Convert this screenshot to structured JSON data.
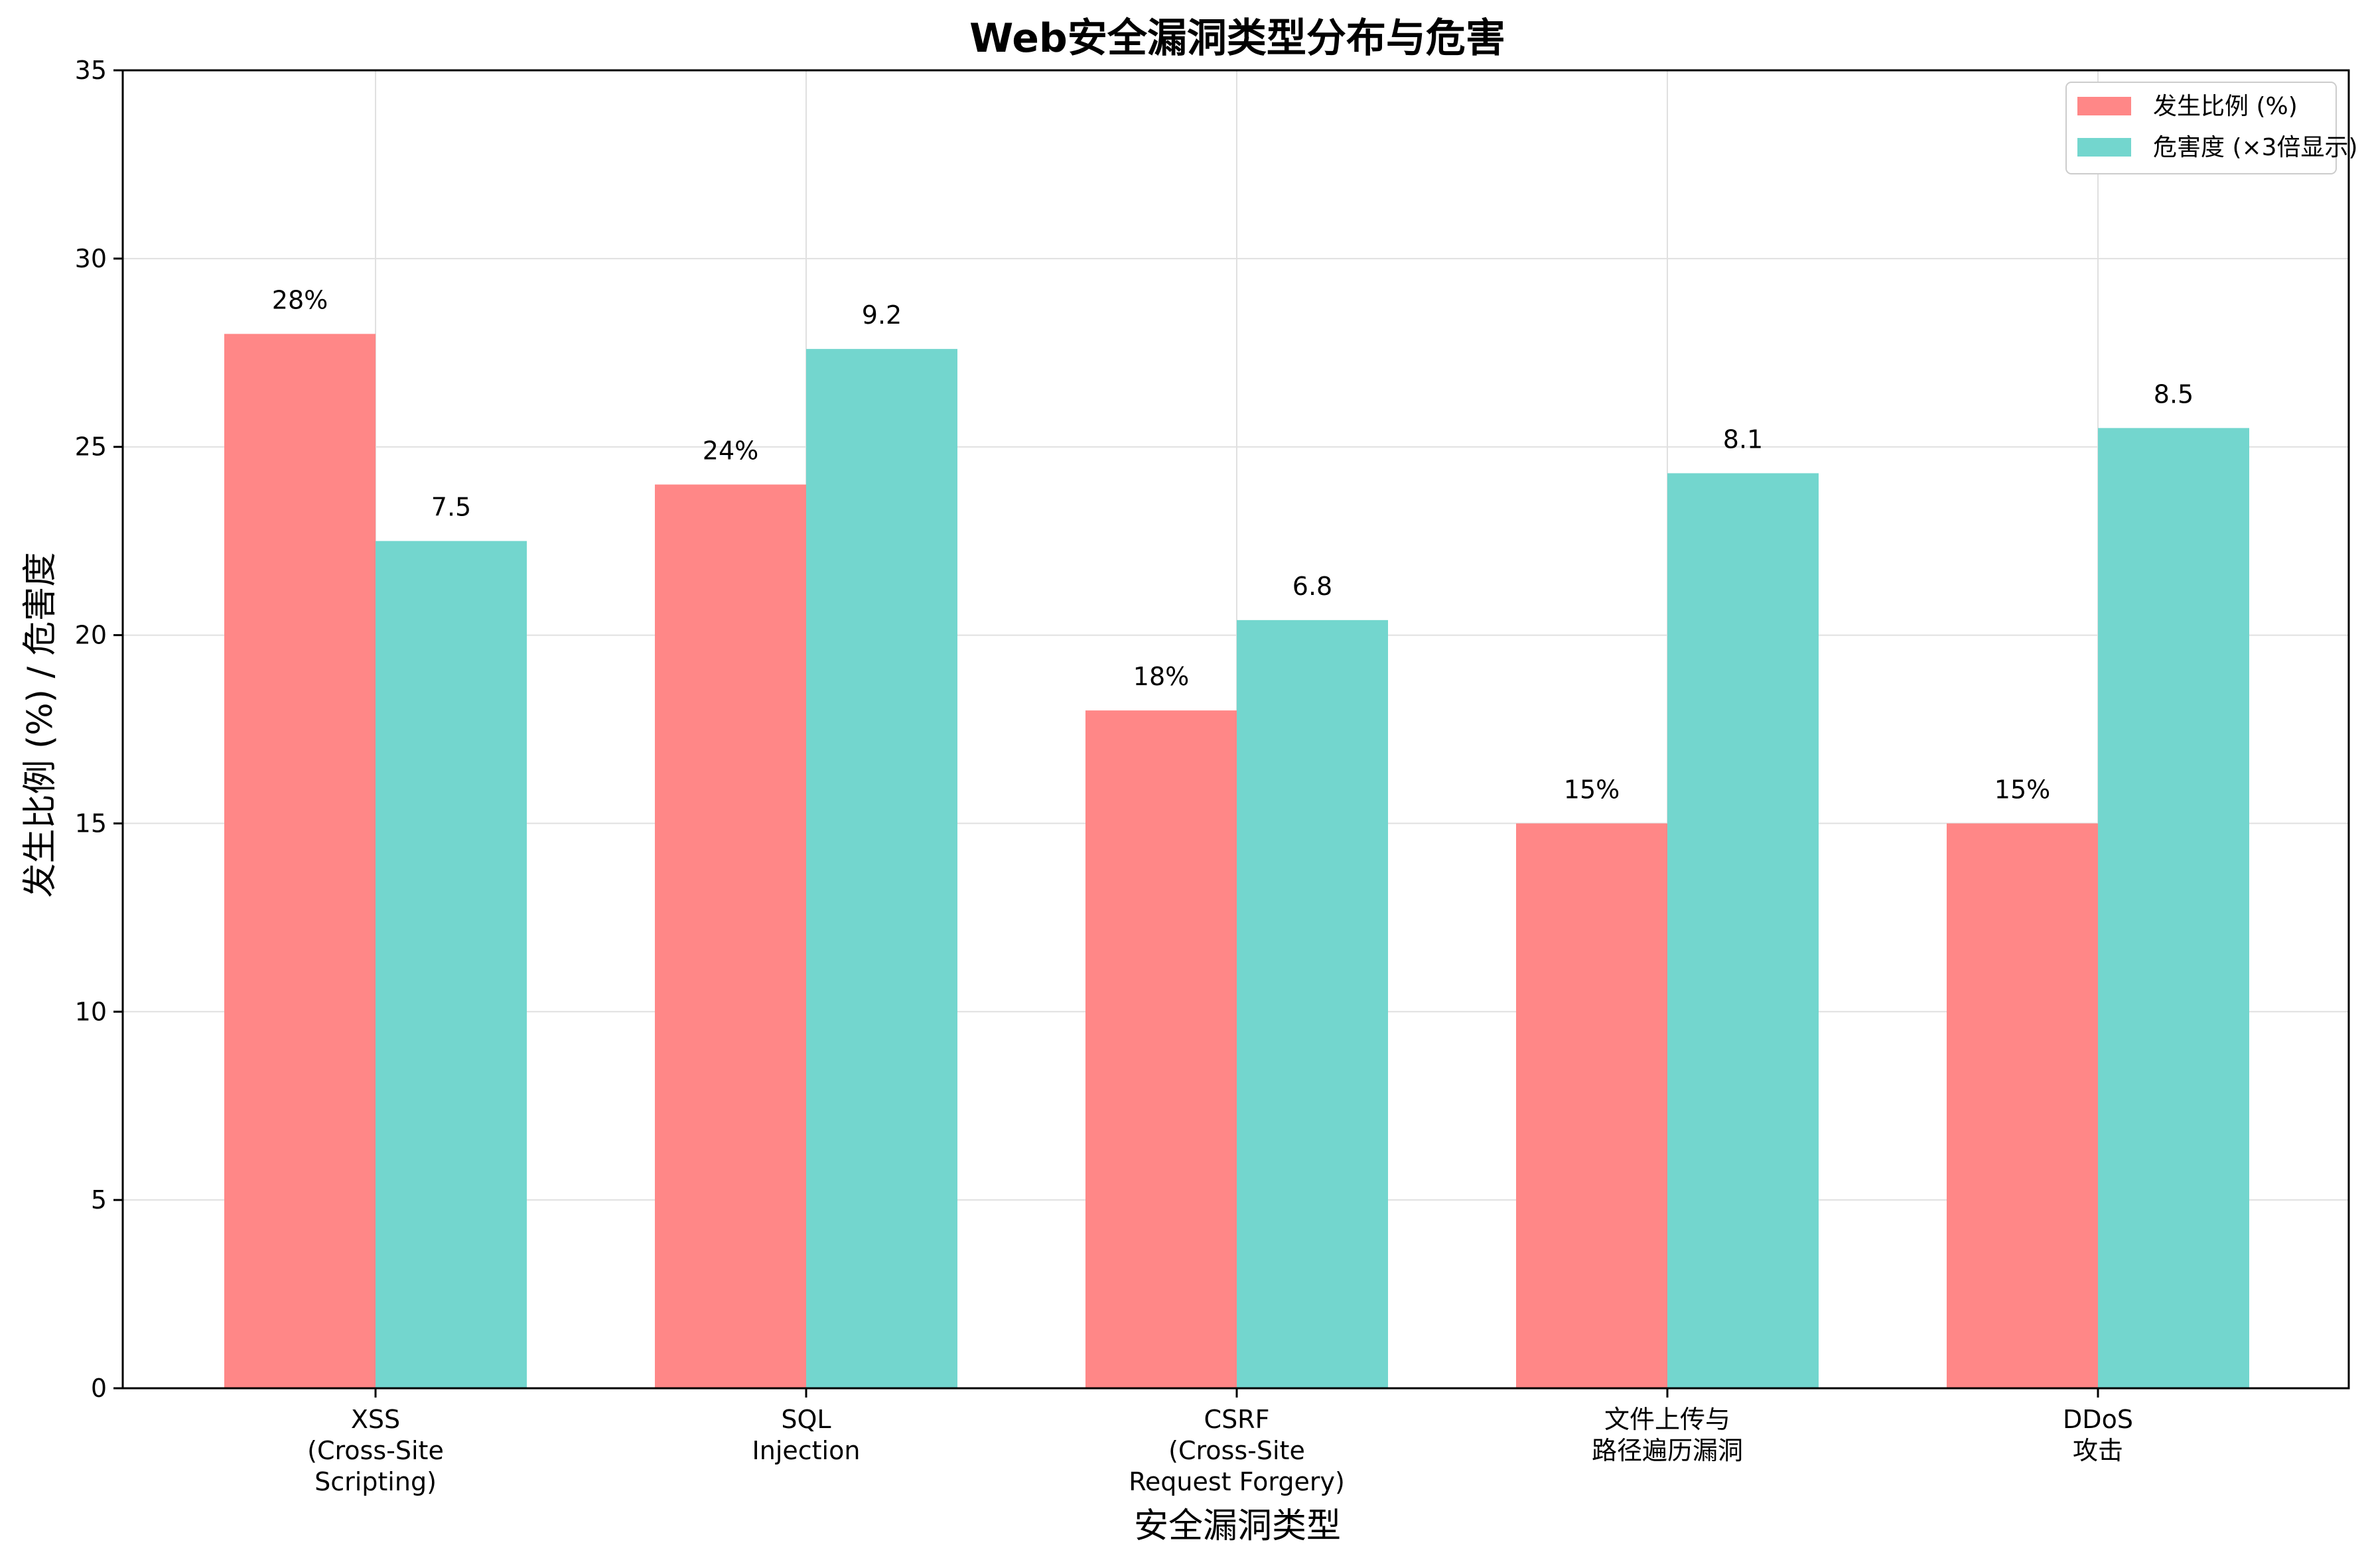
{
  "chart_data": {
    "type": "bar",
    "title": "Web安全漏洞类型分布与危害",
    "xlabel": "安全漏洞类型",
    "ylabel": "发生比例 (%) / 危害度",
    "ylim": [
      0,
      35
    ],
    "yticks": [
      0,
      5,
      10,
      15,
      20,
      25,
      30,
      35
    ],
    "grid": true,
    "legend_position": "top-right",
    "categories": [
      [
        "XSS",
        "(Cross-Site",
        "Scripting)"
      ],
      [
        "SQL",
        "Injection"
      ],
      [
        "CSRF",
        "(Cross-Site",
        "Request Forgery)"
      ],
      [
        "文件上传与",
        "路径遍历漏洞"
      ],
      [
        "DDoS",
        "攻击"
      ]
    ],
    "series": [
      {
        "name": "发生比例 (%)",
        "color": "#ff8787",
        "values": [
          28,
          24,
          18,
          15,
          15
        ],
        "labels": [
          "28%",
          "24%",
          "18%",
          "15%",
          "15%"
        ]
      },
      {
        "name": "危害度 (×3倍显示)",
        "color": "#73d6ce",
        "values": [
          22.5,
          27.6,
          20.4,
          24.3,
          25.5
        ],
        "labels": [
          "7.5",
          "9.2",
          "6.8",
          "8.1",
          "8.5"
        ]
      }
    ]
  }
}
